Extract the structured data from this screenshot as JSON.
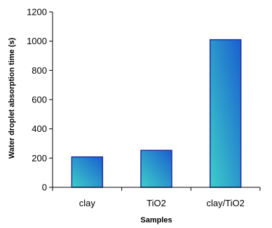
{
  "colors": {
    "bar_fill_start": "#3ccfc9",
    "bar_fill_end": "#1a5fcf",
    "bar_edge": "#1f2f9e",
    "axis": "#000000",
    "background": "#ffffff"
  },
  "chart_data": {
    "type": "bar",
    "title": "",
    "xlabel": "Samples",
    "ylabel": "Water droplet absorption time (s)",
    "categories": [
      "clay",
      "TiO2",
      "clay/TiO2"
    ],
    "series": [
      {
        "values": [
          208,
          253,
          1010
        ]
      }
    ],
    "ylim": [
      0,
      1200
    ],
    "yticks": [
      0,
      200,
      400,
      600,
      800,
      1000,
      1200
    ],
    "grid": false,
    "legend": "none"
  }
}
